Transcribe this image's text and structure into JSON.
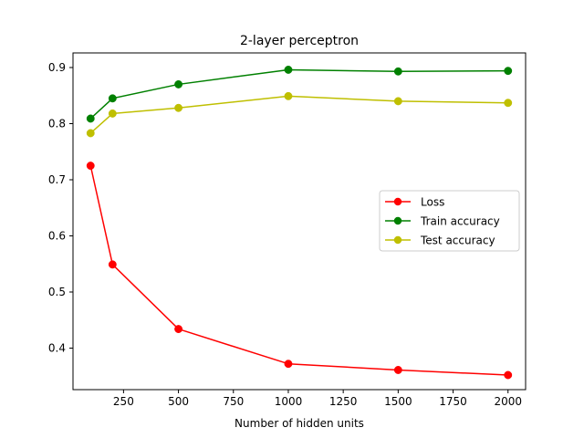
{
  "chart_data": {
    "type": "line",
    "title": "2-layer perceptron",
    "xlabel": "Number of hidden units",
    "ylabel": "",
    "x": [
      100,
      200,
      500,
      1000,
      1500,
      2000
    ],
    "xlim": [
      20,
      2080
    ],
    "ylim": [
      0.326,
      0.926
    ],
    "xticks": [
      250,
      500,
      750,
      1000,
      1250,
      1500,
      1750,
      2000
    ],
    "xtick_labels": [
      "250",
      "500",
      "750",
      "1000",
      "1250",
      "1500",
      "1750",
      "2000"
    ],
    "yticks": [
      0.4,
      0.5,
      0.6,
      0.7,
      0.8,
      0.9
    ],
    "ytick_labels": [
      "0.4",
      "0.5",
      "0.6",
      "0.7",
      "0.8",
      "0.9"
    ],
    "grid": false,
    "legend_position": "center-right",
    "series": [
      {
        "name": "Loss",
        "color": "#ff0000",
        "marker": "circle",
        "values": [
          0.725,
          0.549,
          0.434,
          0.372,
          0.361,
          0.352
        ]
      },
      {
        "name": "Train accuracy",
        "color": "#008000",
        "marker": "circle",
        "values": [
          0.809,
          0.845,
          0.87,
          0.896,
          0.893,
          0.894
        ]
      },
      {
        "name": "Test accuracy",
        "color": "#bfbf00",
        "marker": "circle",
        "values": [
          0.783,
          0.818,
          0.828,
          0.849,
          0.84,
          0.837
        ]
      }
    ]
  }
}
